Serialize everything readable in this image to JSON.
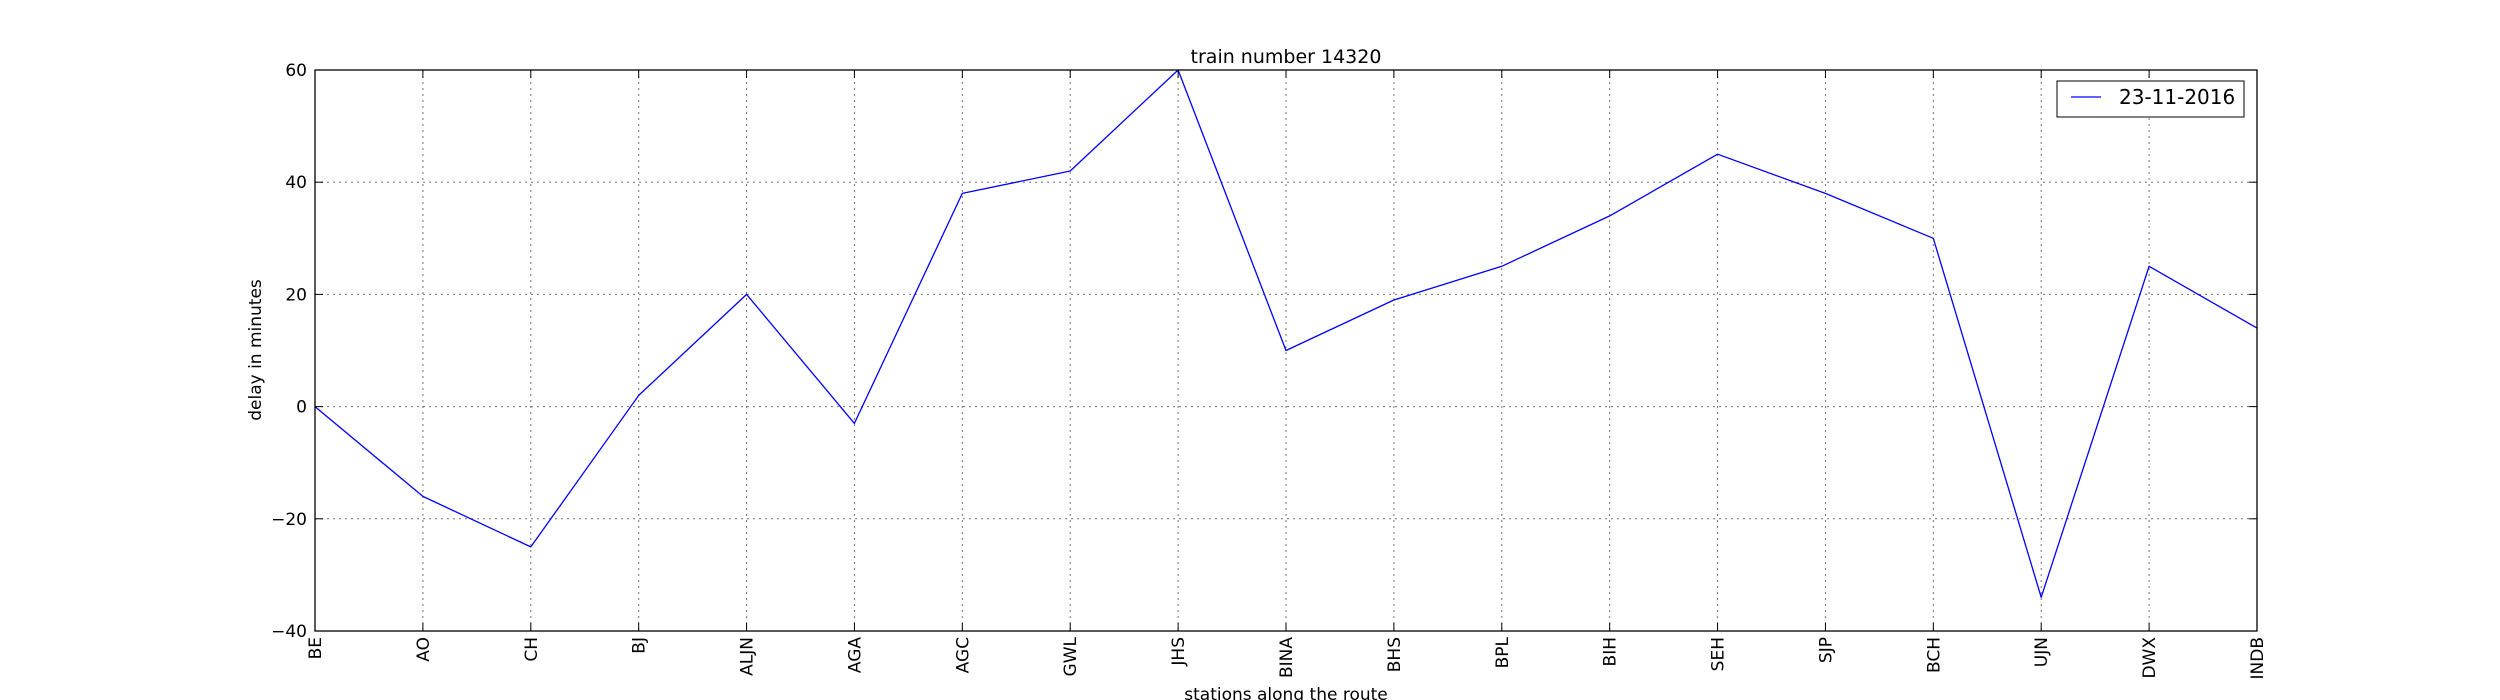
{
  "chart_data": {
    "type": "line",
    "title": "train number 14320",
    "xlabel": "stations along the route",
    "ylabel": "delay in minutes",
    "categories": [
      "BE",
      "AO",
      "CH",
      "BJ",
      "ALJN",
      "AGA",
      "AGC",
      "GWL",
      "JHS",
      "BINA",
      "BHS",
      "BPL",
      "BIH",
      "SEH",
      "SJP",
      "BCH",
      "UJN",
      "DWX",
      "INDB"
    ],
    "ylim": [
      -40,
      60
    ],
    "yticks": [
      -40,
      -20,
      0,
      20,
      40,
      60
    ],
    "ytick_labels": [
      "−40",
      "−20",
      "0",
      "20",
      "40",
      "60"
    ],
    "grid": true,
    "legend_position": "top-right",
    "series": [
      {
        "name": "23-11-2016",
        "color": "#0000ff",
        "values": [
          0,
          -16,
          -25,
          2,
          20,
          -3,
          38,
          42,
          60,
          10,
          19,
          25,
          34,
          45,
          38,
          30,
          -34,
          25,
          14
        ]
      }
    ]
  }
}
